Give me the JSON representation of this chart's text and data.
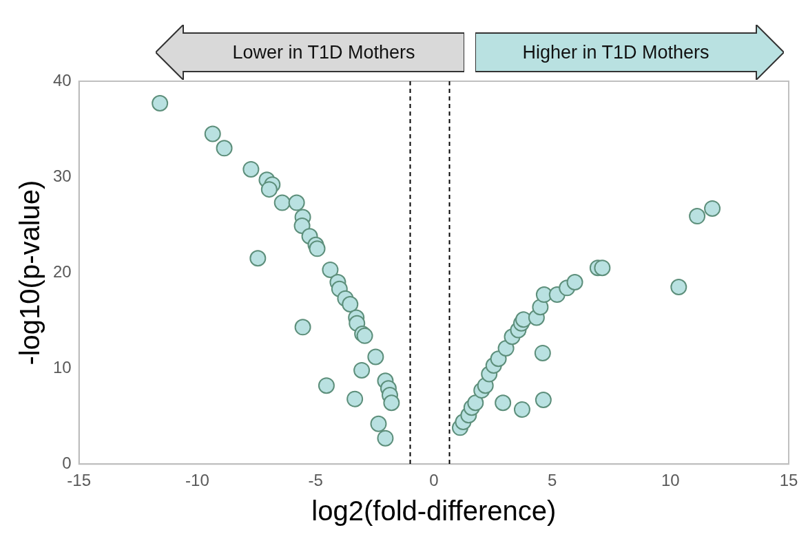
{
  "chart_data": {
    "type": "scatter",
    "xlabel": "log2(fold-difference)",
    "ylabel": "-log10(p-value)",
    "annotations": [
      "Lower in T1D Mothers",
      "Higher in T1D Mothers"
    ],
    "xlim": [
      -15,
      15
    ],
    "xticks": [
      -15,
      -10,
      -5,
      0,
      5,
      10,
      15
    ],
    "ylim": [
      0,
      40
    ],
    "yticks": [
      0,
      10,
      20,
      30,
      40
    ],
    "grid": false,
    "legend": false,
    "marker": "circle",
    "ref_lines": [
      {
        "axis": "x",
        "value": -1,
        "color": "#000000",
        "line_style": "dashed"
      },
      {
        "axis": "x",
        "value": 0.66,
        "color": "#000000",
        "line_style": "dashed"
      }
    ],
    "series": [
      {
        "color": "#b9e1e1",
        "x": [
          -11.58,
          -9.35,
          -8.86,
          -7.73,
          -7.06,
          -6.83,
          -6.96,
          -6.41,
          -5.8,
          -5.54,
          -5.57,
          -5.25,
          -4.99,
          -4.93,
          -7.44,
          -4.38,
          -4.06,
          -3.99,
          -3.74,
          -3.54,
          -3.28,
          -3.25,
          -3.02,
          -2.92,
          -5.54,
          -2.46,
          -3.05,
          -4.54,
          -2.05,
          -1.92,
          -1.86,
          -1.79,
          -3.34,
          -2.34,
          -2.05,
          1.11,
          1.24,
          1.47,
          1.6,
          1.76,
          2.02,
          2.18,
          2.34,
          2.53,
          2.73,
          3.05,
          3.31,
          3.57,
          3.7,
          3.79,
          4.34,
          4.5,
          4.66,
          5.21,
          5.63,
          5.96,
          2.92,
          3.73,
          4.63,
          4.6,
          6.93,
          7.12,
          10.35,
          11.13,
          11.77
        ],
        "values": [
          37.7,
          34.5,
          33.0,
          30.8,
          29.7,
          29.2,
          28.7,
          27.3,
          27.3,
          25.8,
          24.9,
          23.8,
          22.9,
          22.5,
          21.5,
          20.3,
          19.0,
          18.3,
          17.3,
          16.7,
          15.3,
          14.7,
          13.6,
          13.4,
          14.3,
          11.2,
          9.8,
          8.2,
          8.7,
          7.9,
          7.2,
          6.4,
          6.8,
          4.2,
          2.7,
          3.8,
          4.4,
          5.1,
          5.9,
          6.4,
          7.7,
          8.2,
          9.4,
          10.3,
          11.0,
          12.1,
          13.3,
          14.0,
          14.7,
          15.1,
          15.3,
          16.4,
          17.7,
          17.7,
          18.4,
          19.0,
          6.4,
          5.7,
          6.7,
          11.6,
          20.5,
          20.5,
          18.5,
          25.9,
          26.7
        ]
      }
    ]
  }
}
